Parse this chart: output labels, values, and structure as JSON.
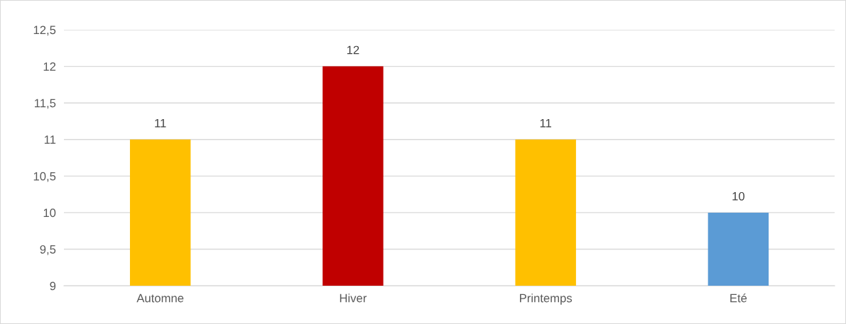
{
  "chart_data": {
    "type": "bar",
    "categories": [
      "Automne",
      "Hiver",
      "Printemps",
      "Eté"
    ],
    "values": [
      11,
      12,
      11,
      10
    ],
    "colors": [
      "#ffc000",
      "#c00000",
      "#ffc000",
      "#5b9bd5"
    ],
    "ylim": [
      9,
      12.5
    ],
    "yticks": [
      9,
      {
        "value": 9.5,
        "label": "9,5"
      },
      10,
      {
        "value": 10.5,
        "label": "10,5"
      },
      11,
      {
        "value": 11.5,
        "label": "11,5"
      },
      12,
      {
        "value": 12.5,
        "label": "12,5"
      }
    ],
    "grid": "y",
    "data_labels": true
  }
}
